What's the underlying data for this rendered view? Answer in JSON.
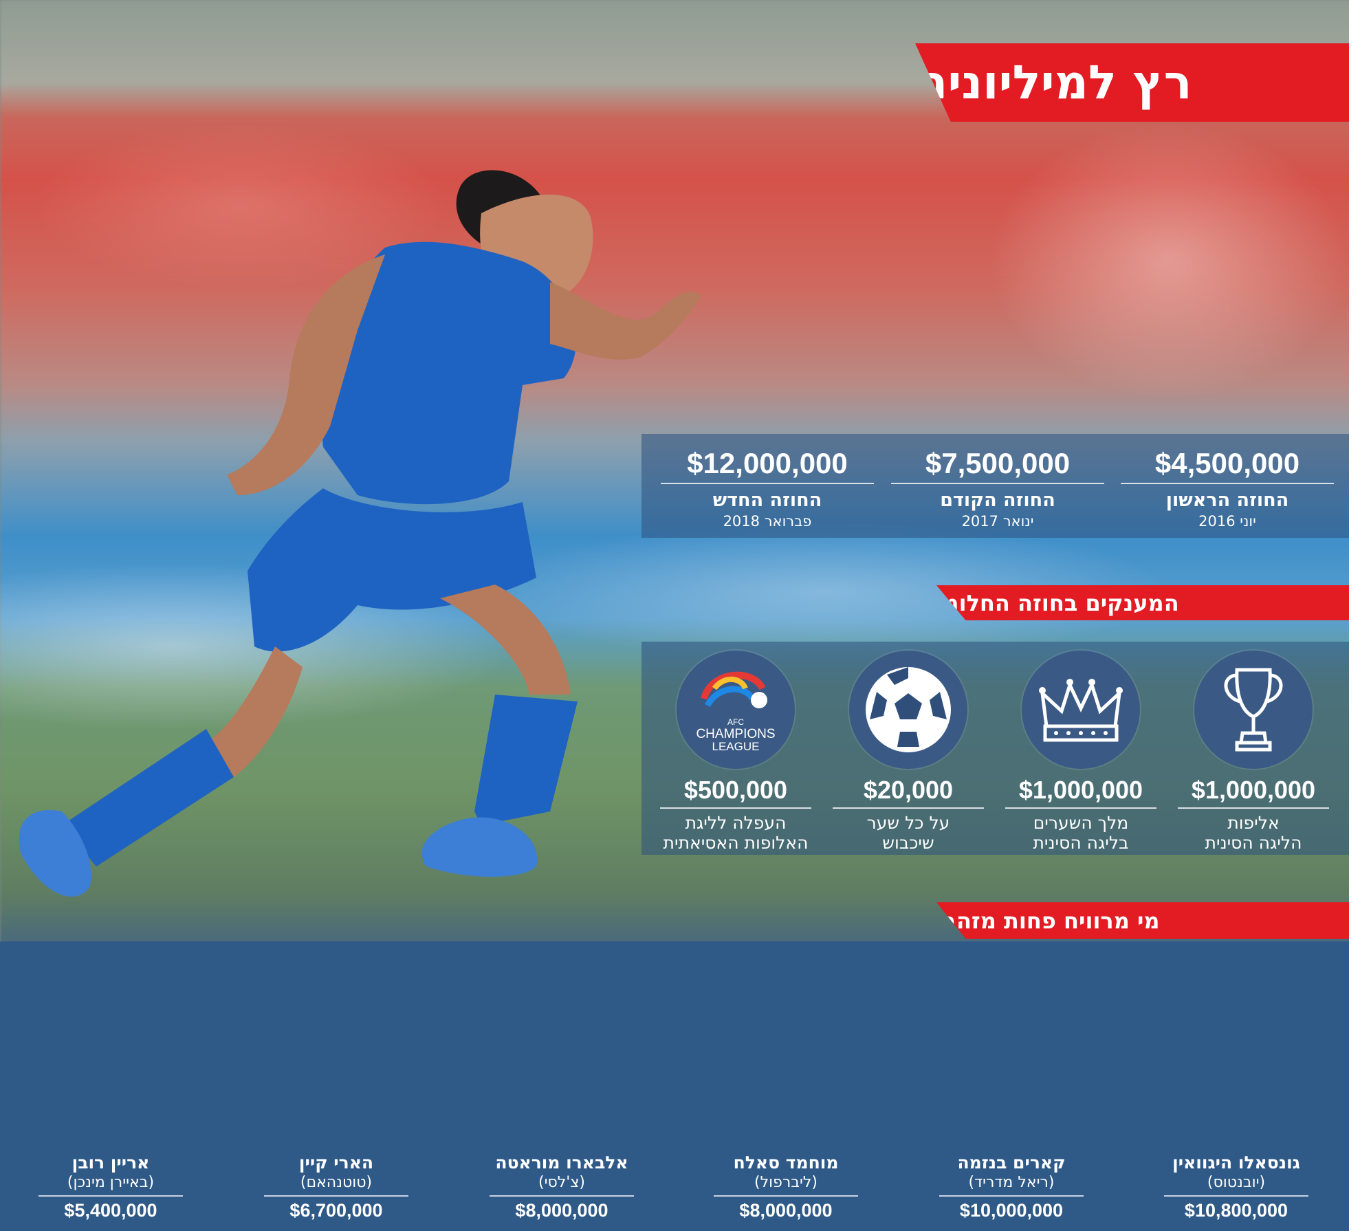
{
  "title": "רץ למיליונים",
  "contracts": [
    {
      "amount": "$12,000,000",
      "label": "החוזה החדש",
      "date": "פברואר 2018",
      "value": 12000000
    },
    {
      "amount": "$7,500,000",
      "label": "החוזה הקודם",
      "date": "ינואר 2017",
      "value": 7500000
    },
    {
      "amount": "$4,500,000",
      "label": "החוזה הראשון",
      "date": "יוני 2016",
      "value": 4500000
    }
  ],
  "bonuses_title": "המענקים בחוזה החלומי",
  "bonuses": [
    {
      "icon": "afc-champions-league-logo",
      "logo_text": [
        "AFC",
        "CHAMPIONS",
        "LEAGUE"
      ],
      "amount": "$500,000",
      "line1": "העפלה לליגת",
      "line2": "האלופות האסיאתית"
    },
    {
      "icon": "soccer-ball-icon",
      "amount": "$20,000",
      "line1": "על כל שער",
      "line2": "שיכבוש"
    },
    {
      "icon": "crown-icon",
      "amount": "$1,000,000",
      "line1": "מלך השערים",
      "line2": "בליגה הסינית"
    },
    {
      "icon": "trophy-icon",
      "amount": "$1,000,000",
      "line1": "אליפות",
      "line2": "הליגה הסינית"
    }
  ],
  "comparison_title": "מי מרוויח פחות מזהבי",
  "players": [
    {
      "name": "אריין רובן",
      "club": "(באיירן מינכן)",
      "amount": "$5,400,000",
      "jersey": "#d9262e"
    },
    {
      "name": "הארי קיין",
      "club": "(טוטנהאם)",
      "amount": "$6,700,000",
      "jersey": "#f2f2f2"
    },
    {
      "name": "אלבארו מוראטה",
      "club": "(צ'לסי)",
      "amount": "$8,000,000",
      "jersey": "#1f4fa8"
    },
    {
      "name": "מוחמד סאלח",
      "club": "(ליברפול)",
      "amount": "$8,000,000",
      "jersey": "#f07a45"
    },
    {
      "name": "קארים בנזמה",
      "club": "(ריאל מדריד)",
      "amount": "$10,000,000",
      "jersey": "#f4f6f8"
    },
    {
      "name": "גונסאלו היגוואין",
      "club": "(יובנטוס)",
      "amount": "$10,800,000",
      "jersey": "#222222"
    }
  ],
  "colors": {
    "accent": "#e31b23",
    "panel": "#2f5a88",
    "money": "#7cb342"
  }
}
